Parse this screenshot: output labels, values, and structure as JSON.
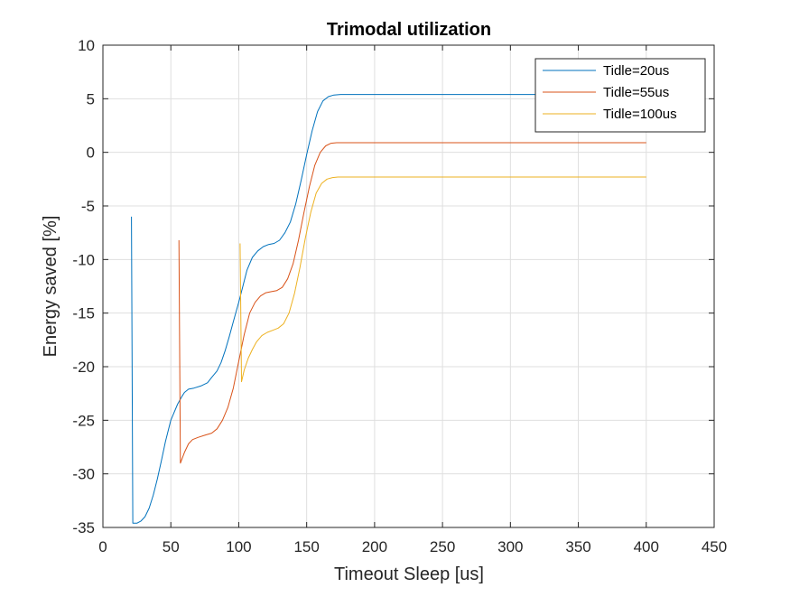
{
  "chart_data": {
    "type": "line",
    "title": "Trimodal utilization",
    "xlabel": "Timeout Sleep [us]",
    "ylabel": "Energy saved [%]",
    "xlim": [
      0,
      450
    ],
    "ylim": [
      -35,
      10
    ],
    "xticks": [
      0,
      50,
      100,
      150,
      200,
      250,
      300,
      350,
      400,
      450
    ],
    "yticks": [
      -35,
      -30,
      -25,
      -20,
      -15,
      -10,
      -5,
      0,
      5,
      10
    ],
    "xtick_labels": [
      "0",
      "50",
      "100",
      "150",
      "200",
      "250",
      "300",
      "350",
      "400",
      "450"
    ],
    "ytick_labels": [
      "-35",
      "-30",
      "-25",
      "-20",
      "-15",
      "-10",
      "-5",
      "0",
      "5",
      "10"
    ],
    "grid": true,
    "legend_position": "top-right",
    "series": [
      {
        "name": "Tidle=20us",
        "color": "#0072BD",
        "x": [
          21,
          22,
          25,
          28,
          31,
          34,
          37,
          40,
          43,
          46,
          50,
          55,
          58,
          60,
          63,
          67,
          72,
          77,
          80,
          84,
          87,
          90,
          93,
          96,
          100,
          103,
          106,
          110,
          114,
          118,
          122,
          126,
          130,
          134,
          138,
          142,
          146,
          150,
          154,
          158,
          162,
          166,
          170,
          175,
          180,
          200,
          250,
          300,
          350,
          400
        ],
        "y": [
          -6,
          -34.6,
          -34.6,
          -34.4,
          -34.0,
          -33.2,
          -32.0,
          -30.5,
          -28.8,
          -27.0,
          -25.0,
          -23.5,
          -22.8,
          -22.4,
          -22.1,
          -22.0,
          -21.8,
          -21.5,
          -21.0,
          -20.4,
          -19.6,
          -18.5,
          -17.2,
          -15.8,
          -14.0,
          -12.5,
          -11.0,
          -9.8,
          -9.2,
          -8.8,
          -8.6,
          -8.5,
          -8.2,
          -7.5,
          -6.5,
          -4.8,
          -2.6,
          -0.2,
          2.0,
          3.8,
          4.8,
          5.2,
          5.35,
          5.4,
          5.4,
          5.4,
          5.4,
          5.4,
          5.4,
          5.4
        ]
      },
      {
        "name": "Tidle=55us",
        "color": "#D95319",
        "x": [
          56,
          57,
          60,
          63,
          66,
          70,
          75,
          80,
          84,
          88,
          92,
          96,
          100,
          104,
          108,
          112,
          116,
          120,
          124,
          128,
          132,
          136,
          140,
          144,
          148,
          152,
          156,
          160,
          164,
          168,
          172,
          176,
          180,
          200,
          250,
          300,
          350,
          400
        ],
        "y": [
          -8.2,
          -29.0,
          -28.0,
          -27.2,
          -26.8,
          -26.6,
          -26.4,
          -26.2,
          -25.8,
          -25.0,
          -23.8,
          -22.0,
          -19.5,
          -17.0,
          -15.0,
          -14.0,
          -13.4,
          -13.1,
          -13.0,
          -12.9,
          -12.6,
          -11.8,
          -10.4,
          -8.2,
          -5.6,
          -3.2,
          -1.2,
          0.0,
          0.6,
          0.85,
          0.9,
          0.9,
          0.9,
          0.9,
          0.9,
          0.9,
          0.9,
          0.9
        ]
      },
      {
        "name": "Tidle=100us",
        "color": "#EDB120",
        "x": [
          101,
          102,
          104,
          107,
          110,
          113,
          117,
          121,
          125,
          129,
          133,
          137,
          141,
          145,
          149,
          153,
          157,
          161,
          165,
          169,
          173,
          177,
          182,
          200,
          250,
          300,
          350,
          400
        ],
        "y": [
          -8.5,
          -21.4,
          -20.3,
          -19.2,
          -18.4,
          -17.7,
          -17.1,
          -16.8,
          -16.6,
          -16.4,
          -16.0,
          -15.0,
          -13.2,
          -10.8,
          -8.0,
          -5.6,
          -3.8,
          -2.9,
          -2.5,
          -2.35,
          -2.3,
          -2.3,
          -2.3,
          -2.3,
          -2.3,
          -2.3,
          -2.3,
          -2.3
        ]
      }
    ]
  }
}
